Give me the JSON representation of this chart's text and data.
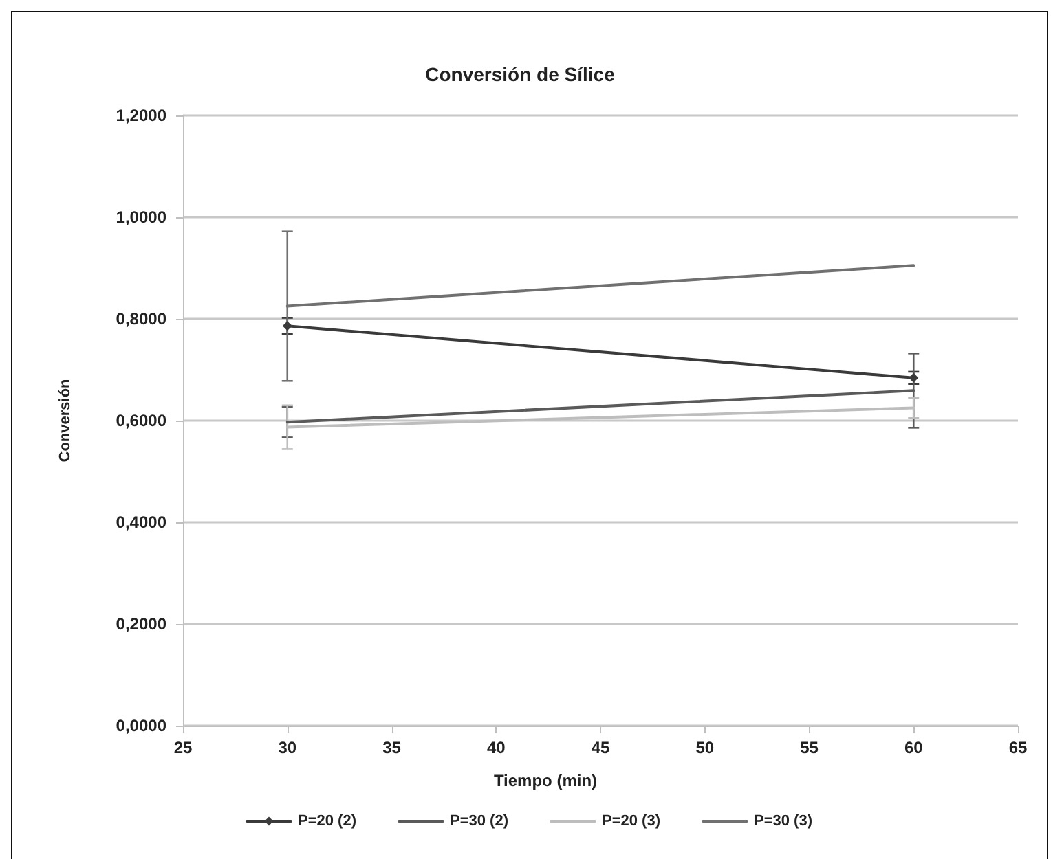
{
  "chart_data": {
    "type": "line",
    "title": "Conversión de Sílice",
    "xlabel": "Tiempo (min)",
    "ylabel": "Conversión",
    "x": [
      30,
      60
    ],
    "series": [
      {
        "name": "P=20 (2)",
        "color": "#3a3a3a",
        "values": [
          0.786,
          0.684
        ],
        "errors": [
          0.016,
          0.012
        ],
        "marker": "diamond"
      },
      {
        "name": "P=30 (2)",
        "color": "#5a5a5a",
        "values": [
          0.597,
          0.659
        ],
        "errors": [
          0.03,
          0.073
        ]
      },
      {
        "name": "P=20 (3)",
        "color": "#bdbdbd",
        "values": [
          0.587,
          0.625
        ],
        "errors": [
          0.043,
          0.02
        ]
      },
      {
        "name": "P=30 (3)",
        "color": "#707070",
        "values": [
          0.825,
          0.905
        ],
        "errors": [
          0.147,
          null
        ]
      }
    ],
    "xlim": [
      25,
      65
    ],
    "xticks": [
      25,
      30,
      35,
      40,
      45,
      50,
      55,
      60,
      65
    ],
    "ylim": [
      0,
      1.2
    ],
    "yticks": [
      {
        "value": 0,
        "label": "0,0000"
      },
      {
        "value": 0.2,
        "label": "0,2000"
      },
      {
        "value": 0.4,
        "label": "0,4000"
      },
      {
        "value": 0.6,
        "label": "0,6000"
      },
      {
        "value": 0.8,
        "label": "0,8000"
      },
      {
        "value": 1,
        "label": "1,0000"
      },
      {
        "value": 1.2,
        "label": "1,2000"
      }
    ],
    "grid": "y",
    "legend": "bottom",
    "marker": "none",
    "line_style": "solid"
  }
}
